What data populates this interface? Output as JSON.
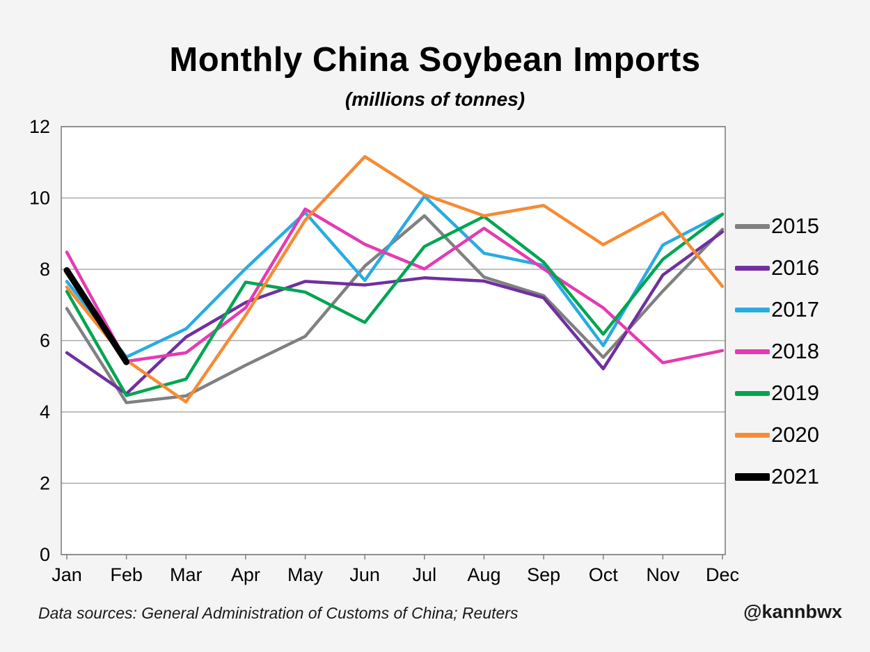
{
  "title": "Monthly China Soybean Imports",
  "subtitle": "(millions of tonnes)",
  "footer": {
    "source": "Data sources: General Administration of Customs of China; Reuters",
    "handle": "@kannbwx"
  },
  "chart_data": {
    "type": "line",
    "title": "Monthly China Soybean Imports",
    "subtitle": "(millions of tonnes)",
    "xlabel": "",
    "ylabel": "",
    "categories": [
      "Jan",
      "Feb",
      "Mar",
      "Apr",
      "May",
      "Jun",
      "Jul",
      "Aug",
      "Sep",
      "Oct",
      "Nov",
      "Dec"
    ],
    "ylim": [
      0,
      12
    ],
    "yticks": [
      0,
      2,
      4,
      6,
      8,
      10,
      12
    ],
    "grid": true,
    "grid_color": "#ababab",
    "axis_color": "#7f7f7f",
    "legend_position": "right",
    "series": [
      {
        "name": "2015",
        "color": "#808080",
        "width": 4.5,
        "values": [
          6.9,
          4.26,
          4.45,
          5.31,
          6.12,
          8.09,
          9.5,
          7.78,
          7.26,
          5.53,
          7.39,
          9.12
        ]
      },
      {
        "name": "2016",
        "color": "#7030A0",
        "width": 4.5,
        "values": [
          5.66,
          4.51,
          6.1,
          7.07,
          7.66,
          7.56,
          7.76,
          7.67,
          7.2,
          5.21,
          7.84,
          9.05
        ]
      },
      {
        "name": "2017",
        "color": "#29ABE2",
        "width": 4.5,
        "values": [
          7.66,
          5.54,
          6.33,
          8.02,
          9.59,
          7.69,
          10.05,
          8.45,
          8.11,
          5.86,
          8.68,
          9.55
        ]
      },
      {
        "name": "2018",
        "color": "#E43BB2",
        "width": 4.5,
        "values": [
          8.48,
          5.42,
          5.66,
          6.92,
          9.69,
          8.7,
          8.01,
          9.15,
          8.01,
          6.92,
          5.38,
          5.72
        ]
      },
      {
        "name": "2019",
        "color": "#00A551",
        "width": 4.5,
        "values": [
          7.38,
          4.46,
          4.92,
          7.64,
          7.36,
          6.51,
          8.64,
          9.48,
          8.2,
          6.18,
          8.28,
          9.54
        ]
      },
      {
        "name": "2020",
        "color": "#F68B33",
        "width": 4.5,
        "values": [
          7.5,
          5.45,
          4.28,
          6.71,
          9.38,
          11.16,
          10.09,
          9.5,
          9.79,
          8.69,
          9.59,
          7.52
        ]
      },
      {
        "name": "2021",
        "color": "#000000",
        "width": 9,
        "values": [
          7.97,
          5.4,
          null,
          null,
          null,
          null,
          null,
          null,
          null,
          null,
          null,
          null
        ]
      }
    ]
  }
}
